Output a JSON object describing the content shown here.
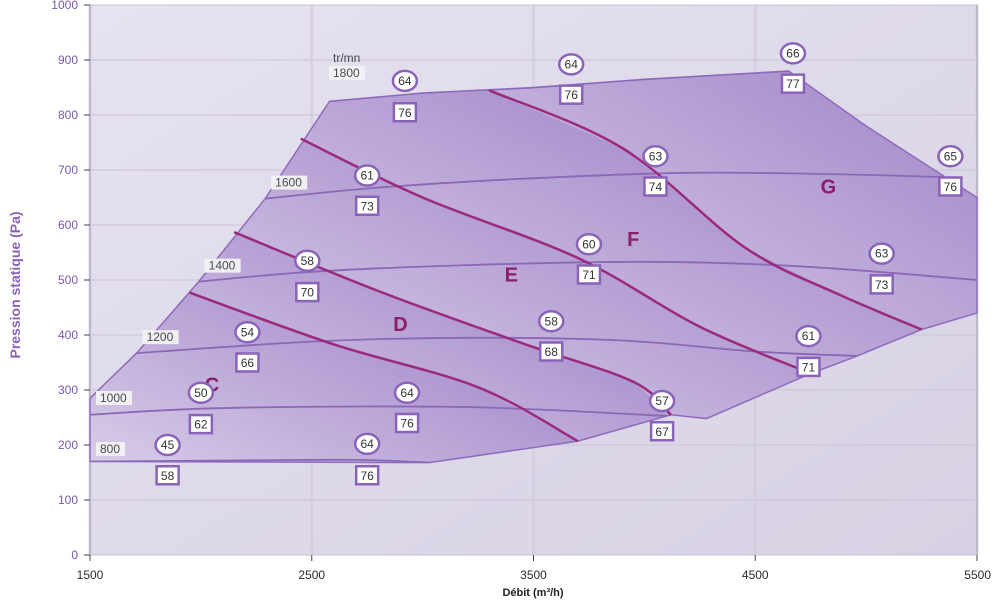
{
  "chart_data": {
    "type": "line",
    "xlabel": "Débit (m³/h)",
    "ylabel": "Pression statique (Pa)",
    "xlim": [
      1500,
      5500
    ],
    "ylim": [
      0,
      1000
    ],
    "x_ticks": [
      "1500",
      "2500",
      "3500",
      "4500",
      "5500"
    ],
    "y_ticks": [
      "0",
      "100",
      "200",
      "300",
      "400",
      "500",
      "600",
      "700",
      "800",
      "900",
      "1000"
    ],
    "speed_unit": "tr/mn",
    "speed_curves": [
      {
        "label": "1800",
        "points": [
          [
            2580,
            825
          ],
          [
            3000,
            840
          ],
          [
            3500,
            850
          ],
          [
            4000,
            865
          ],
          [
            4650,
            880
          ]
        ]
      },
      {
        "label": "1600",
        "points": [
          [
            2290,
            648
          ],
          [
            2800,
            668
          ],
          [
            3500,
            685
          ],
          [
            4200,
            695
          ],
          [
            4900,
            692
          ],
          [
            5500,
            685
          ]
        ]
      },
      {
        "label": "1400",
        "points": [
          [
            1990,
            497
          ],
          [
            2500,
            515
          ],
          [
            3200,
            527
          ],
          [
            4000,
            533
          ],
          [
            4700,
            525
          ],
          [
            5500,
            500
          ]
        ]
      },
      {
        "label": "1200",
        "points": [
          [
            1710,
            367
          ],
          [
            2500,
            388
          ],
          [
            3200,
            395
          ],
          [
            3900,
            390
          ],
          [
            4500,
            370
          ],
          [
            4960,
            362
          ]
        ]
      },
      {
        "label": "1000",
        "points": [
          [
            1500,
            255
          ],
          [
            2000,
            266
          ],
          [
            2700,
            270
          ],
          [
            3300,
            268
          ],
          [
            4000,
            255
          ],
          [
            4280,
            248
          ]
        ]
      },
      {
        "label": "800",
        "points": [
          [
            1500,
            170
          ],
          [
            2200,
            172
          ],
          [
            2700,
            173
          ],
          [
            3030,
            168
          ]
        ]
      }
    ],
    "model_boundaries": [
      {
        "name": "C|D",
        "points": [
          [
            1950,
            477
          ],
          [
            2600,
            383
          ],
          [
            3250,
            305
          ],
          [
            3700,
            207
          ]
        ]
      },
      {
        "name": "D|E",
        "points": [
          [
            2150,
            587
          ],
          [
            2800,
            480
          ],
          [
            3450,
            385
          ],
          [
            3950,
            315
          ],
          [
            4120,
            255
          ]
        ]
      },
      {
        "name": "E|F",
        "points": [
          [
            2450,
            757
          ],
          [
            3000,
            650
          ],
          [
            3700,
            540
          ],
          [
            4250,
            415
          ],
          [
            4750,
            330
          ]
        ]
      },
      {
        "name": "F|G",
        "points": [
          [
            3300,
            845
          ],
          [
            3900,
            740
          ],
          [
            4450,
            560
          ],
          [
            4870,
            475
          ],
          [
            5250,
            410
          ]
        ]
      }
    ],
    "models": [
      {
        "name": "C",
        "x": 2050,
        "y": 310
      },
      {
        "name": "D",
        "x": 2900,
        "y": 420
      },
      {
        "name": "E",
        "x": 3400,
        "y": 510
      },
      {
        "name": "F",
        "x": 3950,
        "y": 575
      },
      {
        "name": "G",
        "x": 4830,
        "y": 670
      }
    ],
    "sound_power_dBA": [
      {
        "value": "45",
        "x": 1850,
        "y": 200
      },
      {
        "value": "50",
        "x": 2000,
        "y": 295
      },
      {
        "value": "54",
        "x": 2210,
        "y": 405
      },
      {
        "value": "58",
        "x": 2480,
        "y": 535
      },
      {
        "value": "61",
        "x": 2750,
        "y": 690
      },
      {
        "value": "64",
        "x": 2920,
        "y": 862
      },
      {
        "value": "64",
        "x": 2750,
        "y": 202
      },
      {
        "value": "64",
        "x": 2930,
        "y": 295
      },
      {
        "value": "58",
        "x": 3580,
        "y": 425
      },
      {
        "value": "60",
        "x": 3750,
        "y": 565
      },
      {
        "value": "63",
        "x": 4050,
        "y": 725
      },
      {
        "value": "64",
        "x": 3670,
        "y": 892
      },
      {
        "value": "57",
        "x": 4080,
        "y": 280
      },
      {
        "value": "61",
        "x": 4740,
        "y": 398
      },
      {
        "value": "63",
        "x": 5070,
        "y": 548
      },
      {
        "value": "65",
        "x": 5380,
        "y": 725
      },
      {
        "value": "66",
        "x": 4670,
        "y": 912
      }
    ],
    "sound_pressure_dBA": [
      {
        "value": "58",
        "x": 1850,
        "y": 145
      },
      {
        "value": "62",
        "x": 2000,
        "y": 238
      },
      {
        "value": "66",
        "x": 2210,
        "y": 350
      },
      {
        "value": "70",
        "x": 2480,
        "y": 478
      },
      {
        "value": "73",
        "x": 2750,
        "y": 635
      },
      {
        "value": "76",
        "x": 2920,
        "y": 805
      },
      {
        "value": "76",
        "x": 2750,
        "y": 145
      },
      {
        "value": "76",
        "x": 2930,
        "y": 240
      },
      {
        "value": "68",
        "x": 3580,
        "y": 370
      },
      {
        "value": "71",
        "x": 3750,
        "y": 510
      },
      {
        "value": "74",
        "x": 4050,
        "y": 670
      },
      {
        "value": "76",
        "x": 3670,
        "y": 837
      },
      {
        "value": "67",
        "x": 4080,
        "y": 225
      },
      {
        "value": "71",
        "x": 4740,
        "y": 342
      },
      {
        "value": "73",
        "x": 5070,
        "y": 492
      },
      {
        "value": "76",
        "x": 5380,
        "y": 670
      },
      {
        "value": "77",
        "x": 4670,
        "y": 857
      }
    ],
    "operating_envelope": [
      [
        1500,
        285
      ],
      [
        1710,
        367
      ],
      [
        1990,
        497
      ],
      [
        2290,
        648
      ],
      [
        2580,
        825
      ],
      [
        3000,
        840
      ],
      [
        3500,
        850
      ],
      [
        4000,
        865
      ],
      [
        4650,
        880
      ],
      [
        5000,
        780
      ],
      [
        5500,
        650
      ],
      [
        5500,
        440
      ],
      [
        5250,
        410
      ],
      [
        4960,
        362
      ],
      [
        4750,
        330
      ],
      [
        4280,
        248
      ],
      [
        4120,
        255
      ],
      [
        3700,
        207
      ],
      [
        3030,
        168
      ],
      [
        1500,
        170
      ]
    ]
  }
}
